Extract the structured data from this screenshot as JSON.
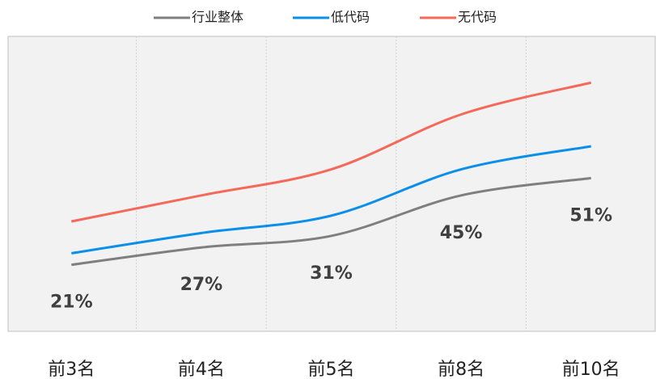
{
  "chart_data": {
    "type": "line",
    "categories": [
      "前3名",
      "前4名",
      "前5名",
      "前8名",
      "前10名"
    ],
    "series": [
      {
        "name": "行业整体",
        "color": "#7f7f7f",
        "values": [
          21,
          27,
          31,
          45,
          51
        ],
        "value_labels": [
          "21%",
          "27%",
          "31%",
          "45%",
          "51%"
        ]
      },
      {
        "name": "低代码",
        "color": "#0b8fe8",
        "values": [
          25,
          32,
          38,
          54,
          62
        ]
      },
      {
        "name": "无代码",
        "color": "#f4695a",
        "values": [
          36,
          45,
          54,
          73,
          84
        ]
      }
    ],
    "ylim": [
      -2,
      100
    ],
    "grid": true
  }
}
